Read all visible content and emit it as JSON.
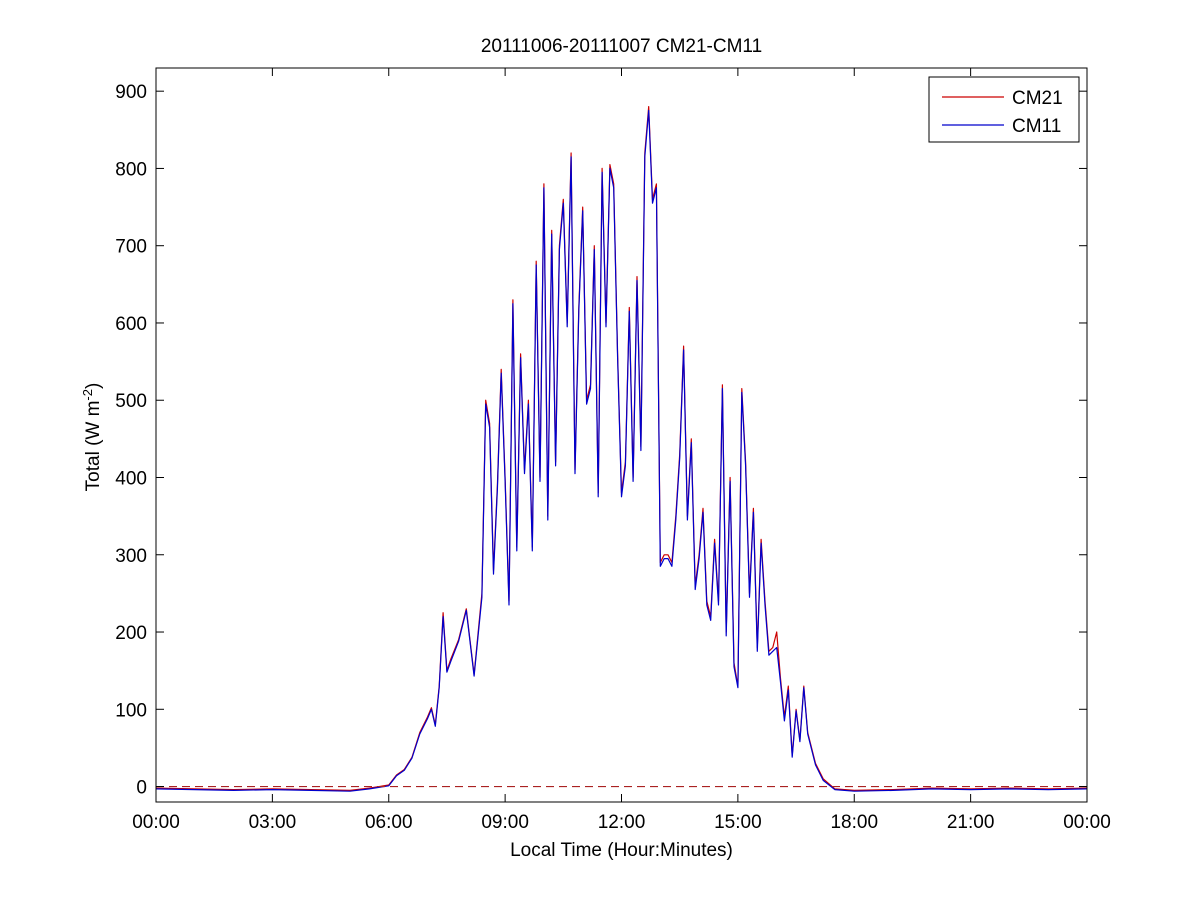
{
  "chart_data": {
    "type": "line",
    "title": "20111006-20111007 CM21-CM11",
    "xlabel": "Local Time (Hour:Minutes)",
    "ylabel_main": "Total (W m",
    "ylabel_sup": "-2",
    "ylabel_close": ")",
    "x_unit": "hours",
    "xlim": [
      0,
      24
    ],
    "ylim": [
      -20,
      930
    ],
    "x_ticks": [
      0,
      3,
      6,
      9,
      12,
      15,
      18,
      21,
      24
    ],
    "x_tick_labels": [
      "00:00",
      "03:00",
      "06:00",
      "09:00",
      "12:00",
      "15:00",
      "18:00",
      "21:00",
      "00:00"
    ],
    "y_ticks": [
      0,
      100,
      200,
      300,
      400,
      500,
      600,
      700,
      800,
      900
    ],
    "y_tick_labels": [
      "0",
      "100",
      "200",
      "300",
      "400",
      "500",
      "600",
      "700",
      "800",
      "900"
    ],
    "grid": false,
    "legend_position": "top-right",
    "reference_line": {
      "y": 0,
      "color": "#aa2222",
      "style": "dashed"
    },
    "series": [
      {
        "name": "CM21",
        "color": "#cc0000",
        "x": [
          0,
          1,
          2,
          3,
          4,
          5,
          5.5,
          6,
          6.2,
          6.4,
          6.6,
          6.8,
          7,
          7.1,
          7.2,
          7.3,
          7.4,
          7.5,
          7.6,
          7.8,
          8,
          8.2,
          8.4,
          8.5,
          8.6,
          8.7,
          8.8,
          8.9,
          9,
          9.1,
          9.2,
          9.3,
          9.4,
          9.5,
          9.6,
          9.7,
          9.8,
          9.9,
          10,
          10.1,
          10.2,
          10.3,
          10.4,
          10.5,
          10.6,
          10.7,
          10.8,
          10.9,
          11,
          11.1,
          11.2,
          11.3,
          11.4,
          11.5,
          11.6,
          11.7,
          11.8,
          11.9,
          12,
          12.1,
          12.2,
          12.3,
          12.4,
          12.5,
          12.6,
          12.7,
          12.8,
          12.9,
          13,
          13.1,
          13.2,
          13.3,
          13.4,
          13.5,
          13.6,
          13.7,
          13.8,
          13.9,
          14,
          14.1,
          14.2,
          14.3,
          14.4,
          14.5,
          14.6,
          14.7,
          14.8,
          14.9,
          15,
          15.1,
          15.2,
          15.3,
          15.4,
          15.5,
          15.6,
          15.7,
          15.8,
          15.9,
          16,
          16.1,
          16.2,
          16.3,
          16.4,
          16.5,
          16.6,
          16.7,
          16.8,
          17,
          17.2,
          17.5,
          18,
          19,
          20,
          21,
          22,
          23,
          24
        ],
        "values": [
          -2,
          -3,
          -4,
          -3,
          -4,
          -5,
          -2,
          2,
          15,
          22,
          38,
          70,
          90,
          102,
          80,
          130,
          225,
          150,
          165,
          190,
          230,
          145,
          250,
          500,
          470,
          280,
          390,
          540,
          400,
          240,
          630,
          310,
          560,
          410,
          500,
          310,
          680,
          400,
          780,
          350,
          720,
          420,
          700,
          760,
          600,
          820,
          410,
          620,
          750,
          500,
          520,
          700,
          380,
          800,
          600,
          805,
          780,
          560,
          380,
          420,
          620,
          400,
          660,
          440,
          820,
          880,
          760,
          780,
          290,
          300,
          300,
          290,
          350,
          430,
          570,
          350,
          450,
          260,
          300,
          360,
          240,
          220,
          320,
          240,
          520,
          200,
          400,
          160,
          130,
          515,
          420,
          250,
          360,
          180,
          320,
          240,
          175,
          180,
          200,
          140,
          90,
          130,
          40,
          100,
          60,
          130,
          70,
          30,
          10,
          -3,
          -5,
          -4,
          -2,
          -3,
          -2,
          -3,
          -2
        ]
      },
      {
        "name": "CM11",
        "color": "#0000cc",
        "x": [
          0,
          1,
          2,
          3,
          4,
          5,
          5.5,
          6,
          6.2,
          6.4,
          6.6,
          6.8,
          7,
          7.1,
          7.2,
          7.3,
          7.4,
          7.5,
          7.6,
          7.8,
          8,
          8.2,
          8.4,
          8.5,
          8.6,
          8.7,
          8.8,
          8.9,
          9,
          9.1,
          9.2,
          9.3,
          9.4,
          9.5,
          9.6,
          9.7,
          9.8,
          9.9,
          10,
          10.1,
          10.2,
          10.3,
          10.4,
          10.5,
          10.6,
          10.7,
          10.8,
          10.9,
          11,
          11.1,
          11.2,
          11.3,
          11.4,
          11.5,
          11.6,
          11.7,
          11.8,
          11.9,
          12,
          12.1,
          12.2,
          12.3,
          12.4,
          12.5,
          12.6,
          12.7,
          12.8,
          12.9,
          13,
          13.1,
          13.2,
          13.3,
          13.4,
          13.5,
          13.6,
          13.7,
          13.8,
          13.9,
          14,
          14.1,
          14.2,
          14.3,
          14.4,
          14.5,
          14.6,
          14.7,
          14.8,
          14.9,
          15,
          15.1,
          15.2,
          15.3,
          15.4,
          15.5,
          15.6,
          15.7,
          15.8,
          15.9,
          16,
          16.1,
          16.2,
          16.3,
          16.4,
          16.5,
          16.6,
          16.7,
          16.8,
          17,
          17.2,
          17.5,
          18,
          19,
          20,
          21,
          22,
          23,
          24
        ],
        "values": [
          -3,
          -4,
          -5,
          -4,
          -5,
          -6,
          -3,
          1,
          14,
          21,
          37,
          68,
          88,
          100,
          78,
          128,
          220,
          148,
          162,
          188,
          228,
          143,
          245,
          495,
          465,
          275,
          385,
          535,
          395,
          235,
          625,
          305,
          555,
          405,
          495,
          305,
          675,
          395,
          775,
          345,
          715,
          415,
          695,
          755,
          595,
          815,
          405,
          615,
          745,
          495,
          515,
          695,
          375,
          795,
          595,
          800,
          775,
          555,
          375,
          415,
          615,
          395,
          655,
          435,
          815,
          875,
          755,
          775,
          285,
          295,
          295,
          285,
          345,
          425,
          565,
          345,
          445,
          255,
          295,
          355,
          235,
          215,
          315,
          235,
          515,
          195,
          395,
          155,
          128,
          510,
          415,
          245,
          355,
          175,
          315,
          235,
          170,
          175,
          180,
          135,
          85,
          125,
          38,
          98,
          58,
          128,
          68,
          28,
          8,
          -4,
          -6,
          -5,
          -3,
          -4,
          -3,
          -4,
          -3
        ]
      }
    ]
  }
}
